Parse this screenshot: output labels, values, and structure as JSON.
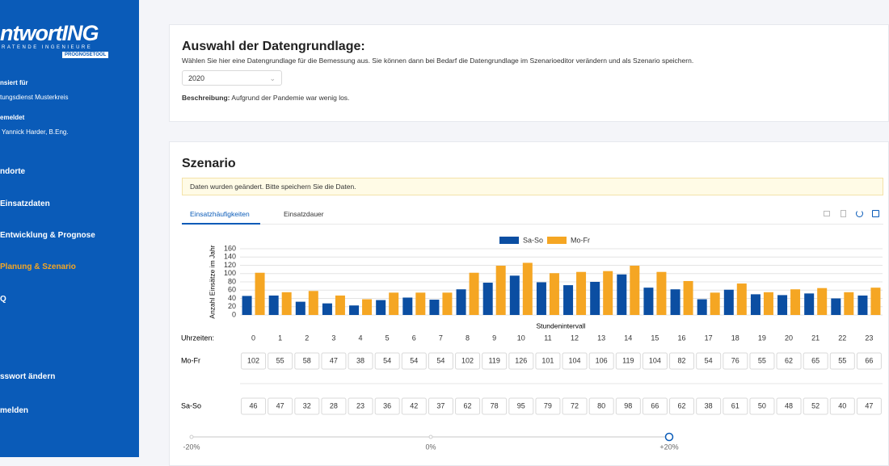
{
  "sidebar": {
    "logo": "ntwortING",
    "logo_sub": "RATENDE INGENIEURE",
    "badge": "PROGNOSETOOL",
    "licensed_label": "nsiert für",
    "licensed_to": "tungsdienst Musterkreis",
    "logged_label": "emeldet",
    "user": "Yannick Harder, B.Eng.",
    "menu": [
      "ndorte",
      "Einsatzdaten",
      "Entwicklung & Prognose",
      "Planung & Szenario",
      "Q",
      "sswort ändern",
      "melden"
    ]
  },
  "datenbasis": {
    "title": "Auswahl der Datengrundlage:",
    "description": "Wählen Sie hier eine Datengrundlage für die Bemessung aus. Sie können dann bei Bedarf die Datengrundlage im Szenarioeditor verändern und als Szenario speichern.",
    "selected": "2020",
    "info_label": "Beschreibung:",
    "info": "Aufgrund der Pandemie war wenig los."
  },
  "scenario": {
    "title": "Szenario",
    "alert": "Daten wurden geändert. Bitte speichern Sie die Daten.",
    "tabs": [
      "Einsatzhäufigkeiten",
      "Einsatzdauer"
    ],
    "hours_label": "Uhrzeiten:"
  },
  "chart_data": {
    "type": "bar",
    "y_label": "Anzahl Einsätze im Jahr",
    "x_label": "Stundenintervall",
    "categories": [
      "0",
      "1",
      "2",
      "3",
      "4",
      "5",
      "6",
      "7",
      "8",
      "9",
      "10",
      "11",
      "12",
      "13",
      "14",
      "15",
      "16",
      "17",
      "18",
      "19",
      "20",
      "21",
      "22",
      "23"
    ],
    "series": [
      {
        "name": "Sa-So",
        "color": "#0b4ea2",
        "values": [
          46,
          47,
          32,
          28,
          23,
          36,
          42,
          37,
          62,
          78,
          95,
          79,
          72,
          80,
          98,
          66,
          62,
          38,
          61,
          50,
          48,
          52,
          40,
          47
        ]
      },
      {
        "name": "Mo-Fr",
        "color": "#f5a623",
        "values": [
          102,
          55,
          58,
          47,
          38,
          54,
          54,
          54,
          102,
          119,
          126,
          101,
          104,
          106,
          119,
          104,
          82,
          54,
          76,
          55,
          62,
          65,
          55,
          66
        ]
      }
    ],
    "ylim": [
      0,
      160
    ],
    "yticks": [
      0,
      20,
      40,
      60,
      80,
      100,
      120,
      140,
      160
    ],
    "grid": true,
    "legend": "top"
  },
  "slider": {
    "labels": [
      "-20%",
      "0%",
      "+20%"
    ]
  }
}
